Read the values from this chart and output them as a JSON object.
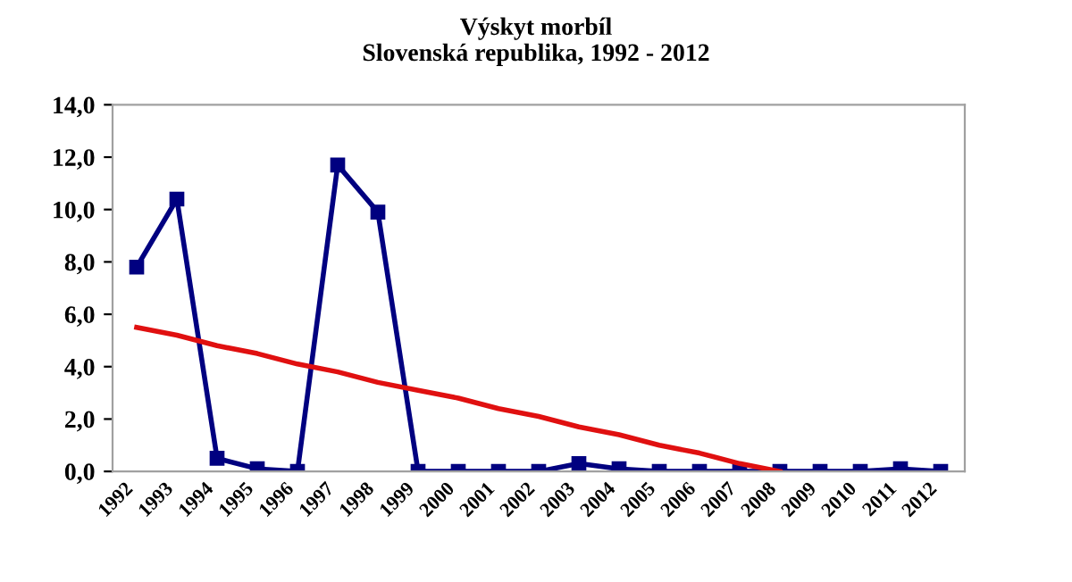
{
  "chart_data": {
    "type": "line",
    "title": "Výskyt morbíl\nSlovenská republika, 1992 - 2012",
    "categories": [
      "1992",
      "1993",
      "1994",
      "1995",
      "1996",
      "1997",
      "1998",
      "1999",
      "2000",
      "2001",
      "2002",
      "2003",
      "2004",
      "2005",
      "2006",
      "2007",
      "2008",
      "2009",
      "2010",
      "2011",
      "2012"
    ],
    "series": [
      {
        "color": "#000080",
        "values": [
          7.8,
          10.4,
          0.5,
          0.1,
          0.0,
          11.7,
          9.9,
          0.0,
          0.0,
          0.0,
          0.0,
          0.3,
          0.1,
          0.0,
          0.0,
          0.0,
          0.0,
          0.0,
          0.0,
          0.1,
          0.0
        ],
        "marker": "square"
      },
      {
        "color": "#e01010",
        "values": [
          5.5,
          5.2,
          4.8,
          4.5,
          4.1,
          3.8,
          3.4,
          3.1,
          2.8,
          2.4,
          2.1,
          1.7,
          1.4,
          1.0,
          0.7,
          0.3,
          0.0,
          null,
          null,
          null,
          null
        ],
        "marker": "none"
      }
    ],
    "ylim": [
      0,
      14
    ],
    "yticks": [
      {
        "value": 0,
        "label": "0,0"
      },
      {
        "value": 2,
        "label": "2,0"
      },
      {
        "value": 4,
        "label": "4,0"
      },
      {
        "value": 6,
        "label": "6,0"
      },
      {
        "value": 8,
        "label": "8,0"
      },
      {
        "value": 10,
        "label": "10,0"
      },
      {
        "value": 12,
        "label": "12,0"
      },
      {
        "value": 14,
        "label": "14,0"
      }
    ],
    "grid": false,
    "legend": false
  }
}
